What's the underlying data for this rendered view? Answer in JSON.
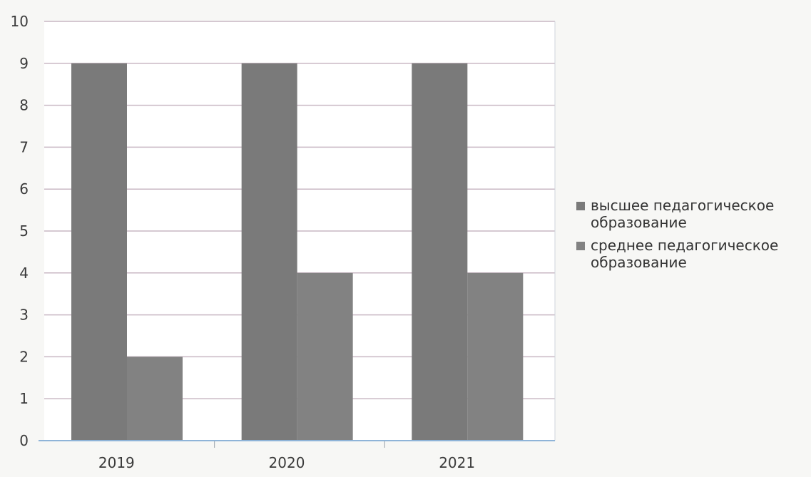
{
  "chart_data": {
    "type": "bar",
    "categories": [
      "2019",
      "2020",
      "2021"
    ],
    "series": [
      {
        "name": "высшее педагогическое образование",
        "values": [
          9,
          9,
          9
        ],
        "color": "#7a7a7a"
      },
      {
        "name": "среднее педагогическое образование",
        "values": [
          2,
          4,
          4
        ],
        "color": "#828282"
      }
    ],
    "y_ticks": [
      "0",
      "1",
      "2",
      "3",
      "4",
      "5",
      "6",
      "7",
      "8",
      "9",
      "10"
    ],
    "ylim": [
      0,
      10
    ],
    "grid": true,
    "legend_position": "right",
    "title": "",
    "xlabel": "",
    "ylabel": ""
  }
}
